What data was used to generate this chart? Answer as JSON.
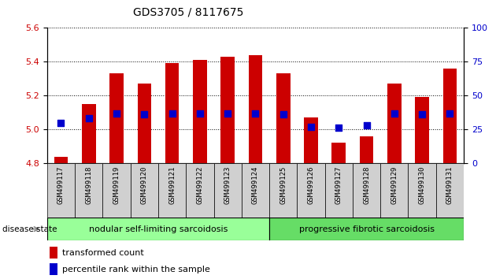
{
  "title": "GDS3705 / 8117675",
  "samples": [
    "GSM499117",
    "GSM499118",
    "GSM499119",
    "GSM499120",
    "GSM499121",
    "GSM499122",
    "GSM499123",
    "GSM499124",
    "GSM499125",
    "GSM499126",
    "GSM499127",
    "GSM499128",
    "GSM499129",
    "GSM499130",
    "GSM499131"
  ],
  "transformed_count": [
    4.84,
    5.15,
    5.33,
    5.27,
    5.39,
    5.41,
    5.43,
    5.44,
    5.33,
    5.07,
    4.92,
    4.96,
    5.27,
    5.19,
    5.36
  ],
  "percentile_rank": [
    30,
    33,
    37,
    36,
    37,
    37,
    37,
    37,
    36,
    27,
    26,
    28,
    37,
    36,
    37
  ],
  "y_min": 4.8,
  "y_max": 5.6,
  "y_ticks": [
    4.8,
    5.0,
    5.2,
    5.4,
    5.6
  ],
  "right_y_ticks": [
    0,
    25,
    50,
    75,
    100
  ],
  "bar_color": "#cc0000",
  "percentile_color": "#0000cc",
  "group1_label": "nodular self-limiting sarcoidosis",
  "group2_label": "progressive fibrotic sarcoidosis",
  "group1_count": 8,
  "group2_count": 7,
  "group1_color": "#99ff99",
  "group2_color": "#66dd66",
  "disease_state_label": "disease state",
  "xlabel_color": "#cc0000",
  "right_axis_color": "#0000cc",
  "bar_bottom": 4.8,
  "bar_width": 0.5,
  "tick_label_bg": "#d0d0d0",
  "legend_red_label": "transformed count",
  "legend_blue_label": "percentile rank within the sample"
}
